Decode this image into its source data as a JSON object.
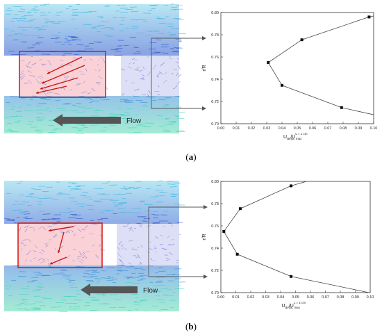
{
  "panels": [
    {
      "caption_open": "(",
      "caption_label": "a",
      "caption_close": ")",
      "flow_label": "Flow",
      "colors": {
        "top": "#3fb4d8",
        "mid": "#1f3fbf",
        "pink": "#f7c6cc",
        "box": "#d42020",
        "arrow": "#555555"
      }
    },
    {
      "caption_open": "(",
      "caption_label": "b",
      "caption_close": ")",
      "flow_label": "Flow",
      "colors": {
        "top": "#3fb4d8",
        "mid": "#1f3fbf",
        "pink": "#f7c6cc",
        "box": "#d42020",
        "arrow": "#555555"
      }
    }
  ],
  "chart_data": [
    {
      "type": "line",
      "ylabel": "r/R",
      "xlabel_main": "U",
      "xlabel_sub1": "av",
      "xlabel_sep": "/U",
      "xlabel_sup2": "L = 1 cm",
      "xlabel_sub2": "ax, max",
      "xlim": [
        0,
        0.1
      ],
      "ylim": [
        0.7,
        0.8
      ],
      "xticks": [
        "0.00",
        "0.01",
        "0.02",
        "0.03",
        "0.04",
        "0.05",
        "0.06",
        "0.07",
        "0.08",
        "0.09",
        "0.10"
      ],
      "yticks": [
        "0.70",
        "0.72",
        "0.74",
        "0.76",
        "0.78",
        "0.80"
      ],
      "series": [
        {
          "points": [
            [
              0.11,
              0.705
            ],
            [
              0.079,
              0.7145
            ],
            [
              0.04,
              0.7345
            ],
            [
              0.031,
              0.755
            ],
            [
              0.053,
              0.7755
            ],
            [
              0.097,
              0.796
            ],
            [
              0.11,
              0.8
            ]
          ],
          "markers": [
            [
              0.079,
              0.7145
            ],
            [
              0.04,
              0.7345
            ],
            [
              0.031,
              0.755
            ],
            [
              0.053,
              0.7755
            ],
            [
              0.097,
              0.796
            ]
          ]
        }
      ]
    },
    {
      "type": "line",
      "ylabel": "r/R",
      "xlabel_main": "U",
      "xlabel_sub1": "av",
      "xlabel_sep": "/U",
      "xlabel_sup2": "L = 1 cm",
      "xlabel_sub2": "ax, max",
      "xlim": [
        0,
        0.1
      ],
      "ylim": [
        0.7,
        0.8
      ],
      "xticks": [
        "0.00",
        "0.01",
        "0.02",
        "0.03",
        "0.04",
        "0.05",
        "0.06",
        "0.07",
        "0.08",
        "0.09",
        "0.10"
      ],
      "yticks": [
        "0.70",
        "0.72",
        "0.74",
        "0.76",
        "0.78",
        "0.80"
      ],
      "series": [
        {
          "points": [
            [
              0.11,
              0.697
            ],
            [
              0.047,
              0.7145
            ],
            [
              0.011,
              0.7345
            ],
            [
              0.002,
              0.755
            ],
            [
              0.013,
              0.7755
            ],
            [
              0.047,
              0.796
            ],
            [
              0.06,
              0.801
            ]
          ],
          "markers": [
            [
              0.047,
              0.7145
            ],
            [
              0.011,
              0.7345
            ],
            [
              0.002,
              0.755
            ],
            [
              0.013,
              0.7755
            ],
            [
              0.047,
              0.796
            ]
          ]
        }
      ]
    }
  ]
}
